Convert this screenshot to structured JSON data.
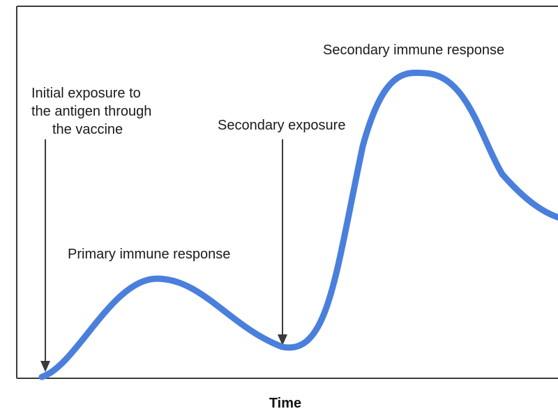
{
  "diagram": {
    "x_axis_label": "Time",
    "curve_color": "#4a7fdc",
    "arrow_color": "#3a3a3a",
    "annotations": {
      "initial_exposure": [
        "Initial exposure to",
        "the antigen through",
        "the vaccine"
      ],
      "secondary_exposure": "Secondary exposure",
      "primary_response": "Primary immune response",
      "secondary_response": "Secondary immune response"
    }
  }
}
